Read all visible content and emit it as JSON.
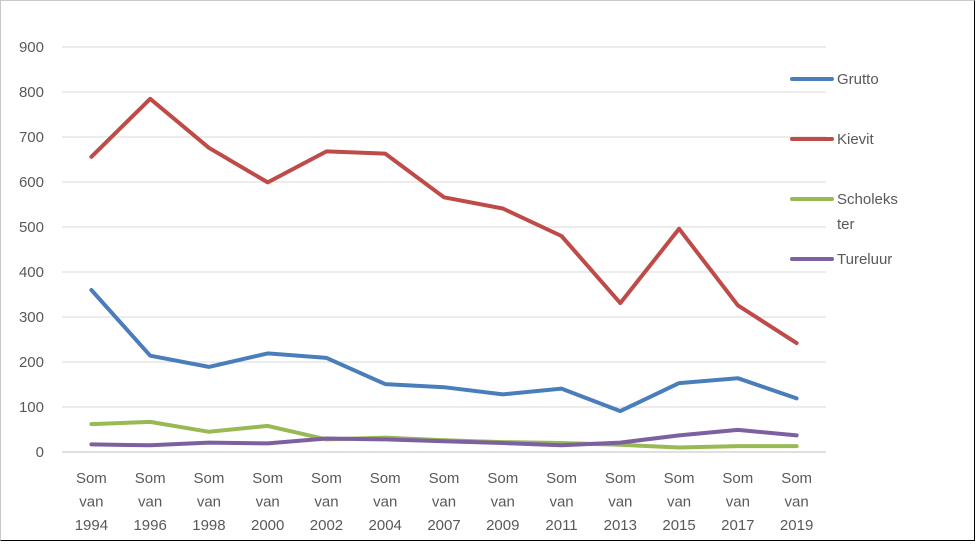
{
  "chart_data": {
    "type": "line",
    "title": "",
    "xlabel": "",
    "ylabel": "",
    "ylim": [
      0,
      900
    ],
    "yticks": [
      "0",
      "100",
      "200",
      "300",
      "400",
      "500",
      "600",
      "700",
      "800",
      "900"
    ],
    "grid": true,
    "legend_position": "right",
    "categories": [
      [
        "Som",
        "van",
        "1994"
      ],
      [
        "Som",
        "van",
        "1996"
      ],
      [
        "Som",
        "van",
        "1998"
      ],
      [
        "Som",
        "van",
        "2000"
      ],
      [
        "Som",
        "van",
        "2002"
      ],
      [
        "Som",
        "van",
        "2004"
      ],
      [
        "Som",
        "van",
        "2007"
      ],
      [
        "Som",
        "van",
        "2009"
      ],
      [
        "Som",
        "van",
        "2011"
      ],
      [
        "Som",
        "van",
        "2013"
      ],
      [
        "Som",
        "van",
        "2015"
      ],
      [
        "Som",
        "van",
        "2017"
      ],
      [
        "Som",
        "van",
        "2019"
      ]
    ],
    "series": [
      {
        "name": "Grutto",
        "legend_lines": [
          "Grutto"
        ],
        "color": "#4a7ebb",
        "values": [
          360,
          214,
          189,
          219,
          209,
          151,
          144,
          128,
          141,
          91,
          153,
          164,
          119
        ]
      },
      {
        "name": "Kievit",
        "legend_lines": [
          "Kievit"
        ],
        "color": "#be4b48",
        "values": [
          656,
          785,
          676,
          599,
          668,
          663,
          566,
          541,
          480,
          331,
          496,
          326,
          242
        ]
      },
      {
        "name": "Scholekster",
        "legend_lines": [
          "Scholeks",
          "ter"
        ],
        "color": "#98b954",
        "values": [
          62,
          67,
          45,
          58,
          28,
          32,
          26,
          22,
          20,
          16,
          10,
          13,
          13
        ]
      },
      {
        "name": "Tureluur",
        "legend_lines": [
          "Tureluur"
        ],
        "color": "#7d60a0",
        "values": [
          17,
          15,
          21,
          19,
          30,
          28,
          24,
          20,
          15,
          21,
          37,
          49,
          37
        ]
      }
    ]
  }
}
